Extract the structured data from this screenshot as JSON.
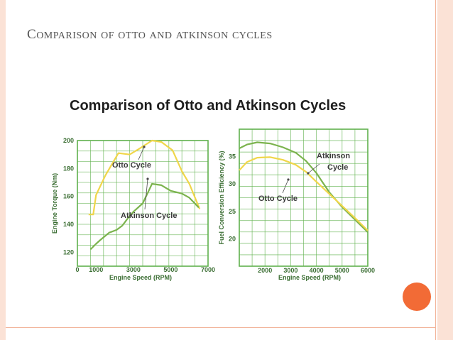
{
  "slide": {
    "title": "Comparison of otto and atkinson cycles"
  },
  "figure": {
    "title": "Comparison of Otto and Atkinson Cycles"
  },
  "colors": {
    "otto": "#f0d64a",
    "atkinson": "#7bb34d",
    "grid": "#5fb14c",
    "accent_dot": "#f26b36"
  },
  "chart_data": [
    {
      "type": "line",
      "title": "",
      "xlabel": "Engine Speed (RPM)",
      "ylabel": "Engine Torque (Nm)",
      "xlim": [
        0,
        7000
      ],
      "ylim": [
        110,
        200
      ],
      "x_ticks": [
        {
          "value": 0,
          "label": "0"
        },
        {
          "value": 1000,
          "label": "1000"
        },
        {
          "value": 3000,
          "label": "3000"
        },
        {
          "value": 5000,
          "label": "5000"
        },
        {
          "value": 7000,
          "label": "7000"
        }
      ],
      "y_ticks": [
        {
          "value": 120,
          "label": "120"
        },
        {
          "value": 140,
          "label": "140"
        },
        {
          "value": 160,
          "label": "160"
        },
        {
          "value": 180,
          "label": "180"
        },
        {
          "value": 200,
          "label": "200"
        }
      ],
      "series": [
        {
          "name": "Otto Cycle",
          "x": [
            600,
            850,
            1000,
            1500,
            2200,
            2800,
            3300,
            4000,
            4500,
            5100,
            5600,
            6000,
            6550
          ],
          "y": [
            147,
            147,
            161,
            175,
            191,
            190,
            194,
            200,
            199,
            193,
            178,
            169,
            151
          ]
        },
        {
          "name": "Atkinson Cycle",
          "x": [
            700,
            1000,
            1250,
            1700,
            2100,
            2400,
            2800,
            3000,
            3500,
            4000,
            4500,
            5000,
            5600,
            6000,
            6500
          ],
          "y": [
            122,
            126,
            129,
            134,
            136,
            139,
            146,
            149,
            155,
            169,
            168,
            164,
            162,
            159,
            152
          ]
        }
      ],
      "annotations": [
        {
          "text": "Otto Cycle",
          "series": "Otto Cycle"
        },
        {
          "text": "Atkinson Cycle",
          "series": "Atkinson Cycle"
        }
      ]
    },
    {
      "type": "line",
      "title": "",
      "xlabel": "Engine Speed (RPM)",
      "ylabel": "Fuel Conversion Efficiency (%)",
      "xlim": [
        1000,
        6000
      ],
      "ylim": [
        15,
        40
      ],
      "x_ticks": [
        {
          "value": 2000,
          "label": "2000"
        },
        {
          "value": 3000,
          "label": "3000"
        },
        {
          "value": 4000,
          "label": "4000"
        },
        {
          "value": 5000,
          "label": "5000"
        },
        {
          "value": 6000,
          "label": "6000"
        }
      ],
      "y_ticks": [
        {
          "value": 20,
          "label": "20"
        },
        {
          "value": 25,
          "label": "25"
        },
        {
          "value": 30,
          "label": "30"
        },
        {
          "value": 35,
          "label": "35"
        }
      ],
      "series": [
        {
          "name": "Atkinson Cycle",
          "x": [
            1000,
            1300,
            1700,
            2200,
            2700,
            3200,
            3600,
            4000,
            4500,
            5000,
            5500,
            6000
          ],
          "y": [
            36.5,
            37.2,
            37.6,
            37.4,
            36.7,
            35.7,
            34.2,
            32.0,
            28.5,
            25.8,
            23.5,
            21.2
          ]
        },
        {
          "name": "Otto Cycle",
          "x": [
            1000,
            1300,
            1700,
            2200,
            2700,
            3200,
            3600,
            4000,
            4500,
            5000,
            5500,
            6000
          ],
          "y": [
            32.5,
            34.0,
            34.8,
            34.9,
            34.4,
            33.5,
            32.2,
            30.4,
            28.2,
            26.0,
            23.8,
            21.5
          ]
        }
      ],
      "annotations": [
        {
          "text": "Atkinson",
          "series": "Atkinson Cycle"
        },
        {
          "text": "Cycle",
          "series": "Atkinson Cycle"
        },
        {
          "text": "Otto Cycle",
          "series": "Otto Cycle"
        }
      ]
    }
  ]
}
